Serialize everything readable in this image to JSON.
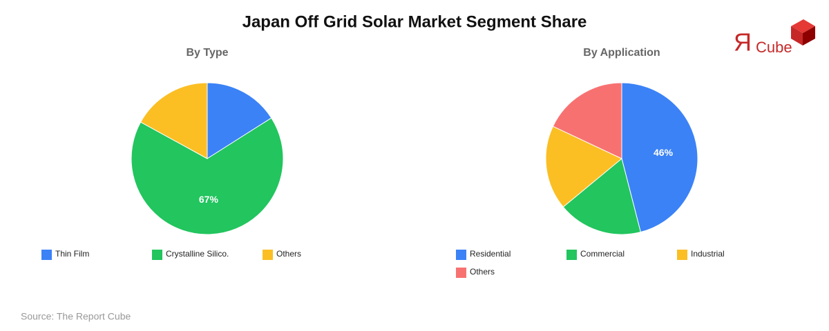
{
  "title": "Japan Off Grid Solar Market Segment Share",
  "logo": {
    "mark": "Я",
    "text": "Cube"
  },
  "source": "Source: The Report Cube",
  "chart_data": [
    {
      "type": "pie",
      "title": "By Type",
      "categories": [
        "Thin Film",
        "Crystalline Silico.",
        "Others"
      ],
      "values": [
        16,
        67,
        17
      ],
      "value_labels": [
        null,
        "67%",
        null
      ],
      "colors": [
        "#3b82f6",
        "#22c55e",
        "#fbbf24"
      ]
    },
    {
      "type": "pie",
      "title": "By Application",
      "categories": [
        "Residential",
        "Commercial",
        "Industrial",
        "Others"
      ],
      "values": [
        46,
        18,
        18,
        18
      ],
      "value_labels": [
        "46%",
        null,
        null,
        null
      ],
      "colors": [
        "#3b82f6",
        "#22c55e",
        "#fbbf24",
        "#f87171"
      ]
    }
  ]
}
